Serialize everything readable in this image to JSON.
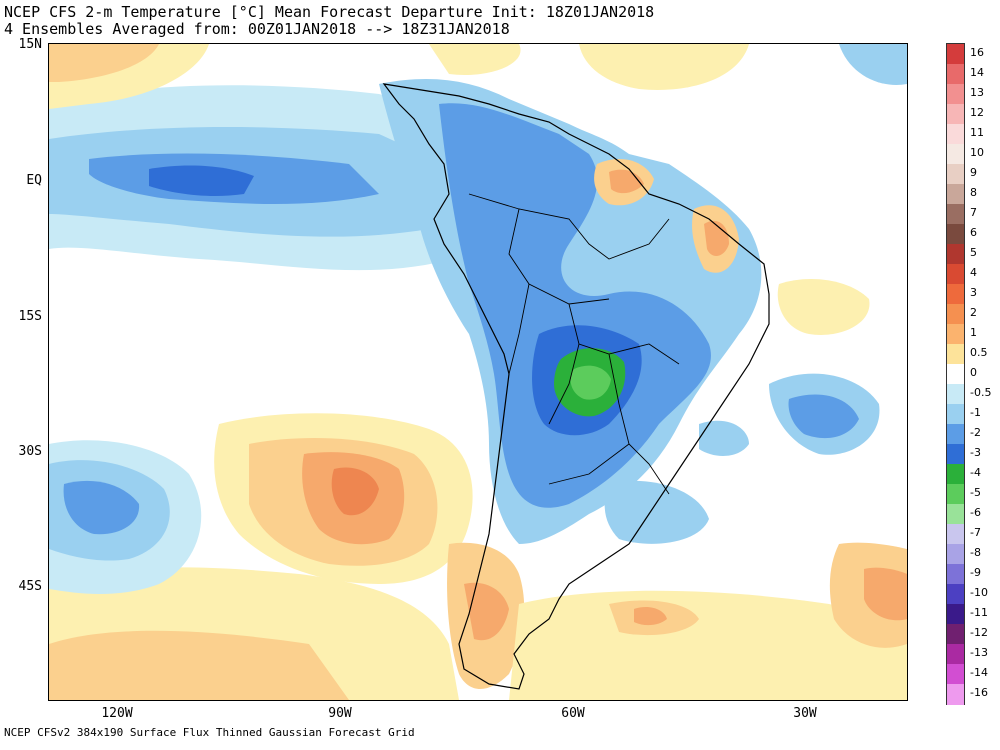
{
  "title_line1": "NCEP CFS 2-m Temperature [°C] Mean Forecast Departure Init: 18Z01JAN2018",
  "title_line2": "4 Ensembles Averaged from: 00Z01JAN2018 --> 18Z31JAN2018",
  "footer": "NCEP CFSv2 384x190 Surface Flux Thinned Gaussian Forecast Grid",
  "lat_labels": [
    "15N",
    "EQ",
    "15S",
    "30S",
    "45S"
  ],
  "lon_labels": [
    "120W",
    "90W",
    "60W",
    "30W"
  ],
  "colorbar_labels": [
    "16",
    "14",
    "13",
    "12",
    "11",
    "10",
    "9",
    "8",
    "7",
    "6",
    "5",
    "4",
    "3",
    "2",
    "1",
    "0.5",
    "0",
    "-0.5",
    "-1",
    "-2",
    "-3",
    "-4",
    "-5",
    "-6",
    "-7",
    "-8",
    "-9",
    "-10",
    "-11",
    "-12",
    "-13",
    "-14",
    "-16"
  ],
  "colorbar_colors": [
    "#d43c3c",
    "#e86a6a",
    "#f29090",
    "#f7b6b6",
    "#fadada",
    "#f5e9e3",
    "#e8cfc4",
    "#c9a79a",
    "#9a6e62",
    "#7a4a3e",
    "#b0372f",
    "#d94a32",
    "#ee6a3c",
    "#f59050",
    "#fbb36e",
    "#fde39a",
    "#ffffff",
    "#c8eaf6",
    "#9ad0f0",
    "#5c9de6",
    "#2f6ed6",
    "#2bb03a",
    "#5ccc5c",
    "#99e299",
    "#c9c6ee",
    "#a9a3e6",
    "#7d72d8",
    "#4c40c2",
    "#3a1a8a",
    "#702070",
    "#aa2aa2",
    "#d24ed2",
    "#ee9aee"
  ],
  "colors": {
    "neg_05": "#c8eaf6",
    "neg_1": "#9ad0f0",
    "neg_2": "#5c9de6",
    "neg_3": "#2f6ed6",
    "neg_4": "#2bb03a",
    "neg_5": "#5ccc5c",
    "pos_05": "#fdf0b0",
    "pos_1": "#fbd08e",
    "pos_2": "#f6a96c",
    "pos_3": "#ee8650"
  }
}
